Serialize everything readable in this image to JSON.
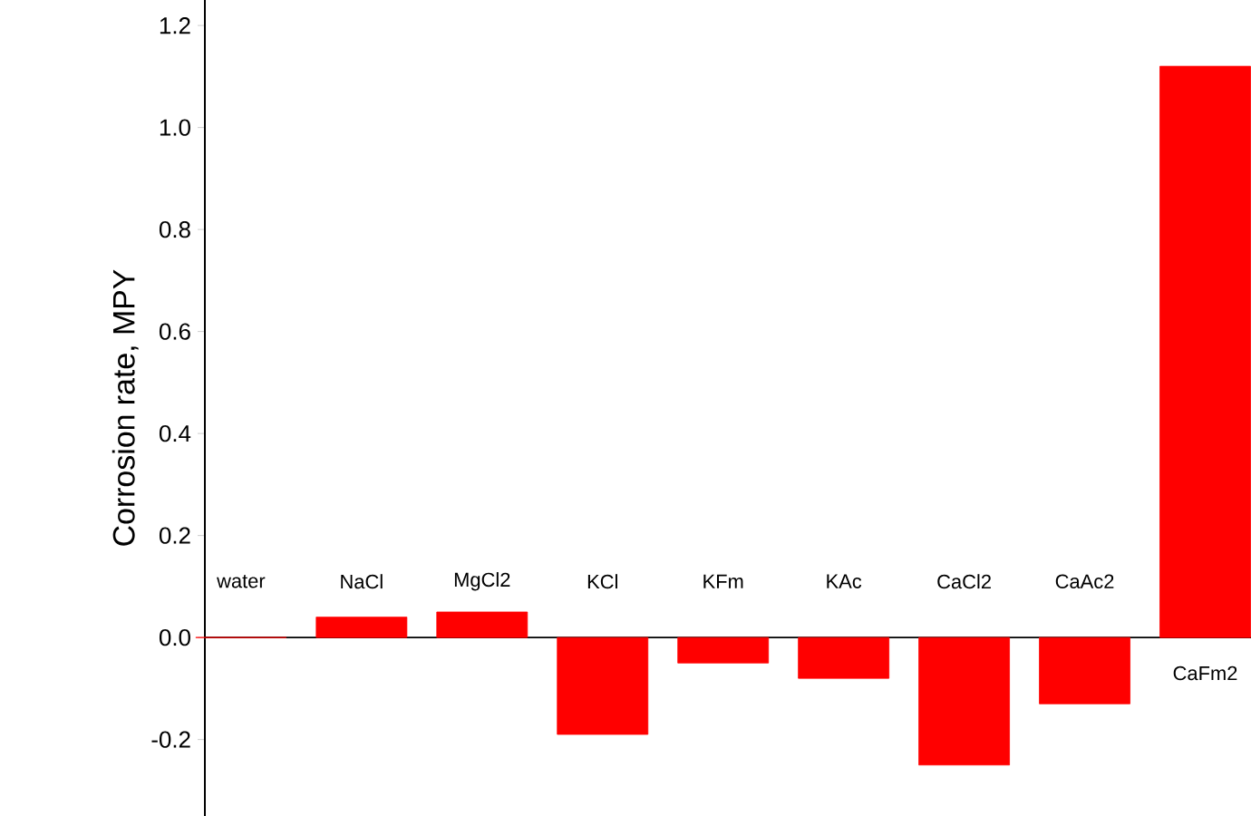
{
  "chart_data": {
    "type": "bar",
    "ylabel": "Corrosion rate, MPY",
    "categories": [
      "water",
      "NaCl",
      "MgCl2",
      "KCl",
      "KFm",
      "KAc",
      "CaCl2",
      "CaAc2",
      "CaFm2"
    ],
    "values": [
      0,
      0.04,
      0.05,
      -0.19,
      -0.05,
      -0.08,
      -0.25,
      -0.13,
      1.12
    ],
    "color": "#ff0000",
    "ylim": [
      -0.35,
      1.25
    ],
    "yticks": [
      -0.2,
      {
        "value": 0,
        "label": "0.0"
      },
      0.2,
      0.4,
      0.6,
      0.8,
      {
        "value": 1,
        "label": "1.0"
      },
      1.2
    ]
  }
}
